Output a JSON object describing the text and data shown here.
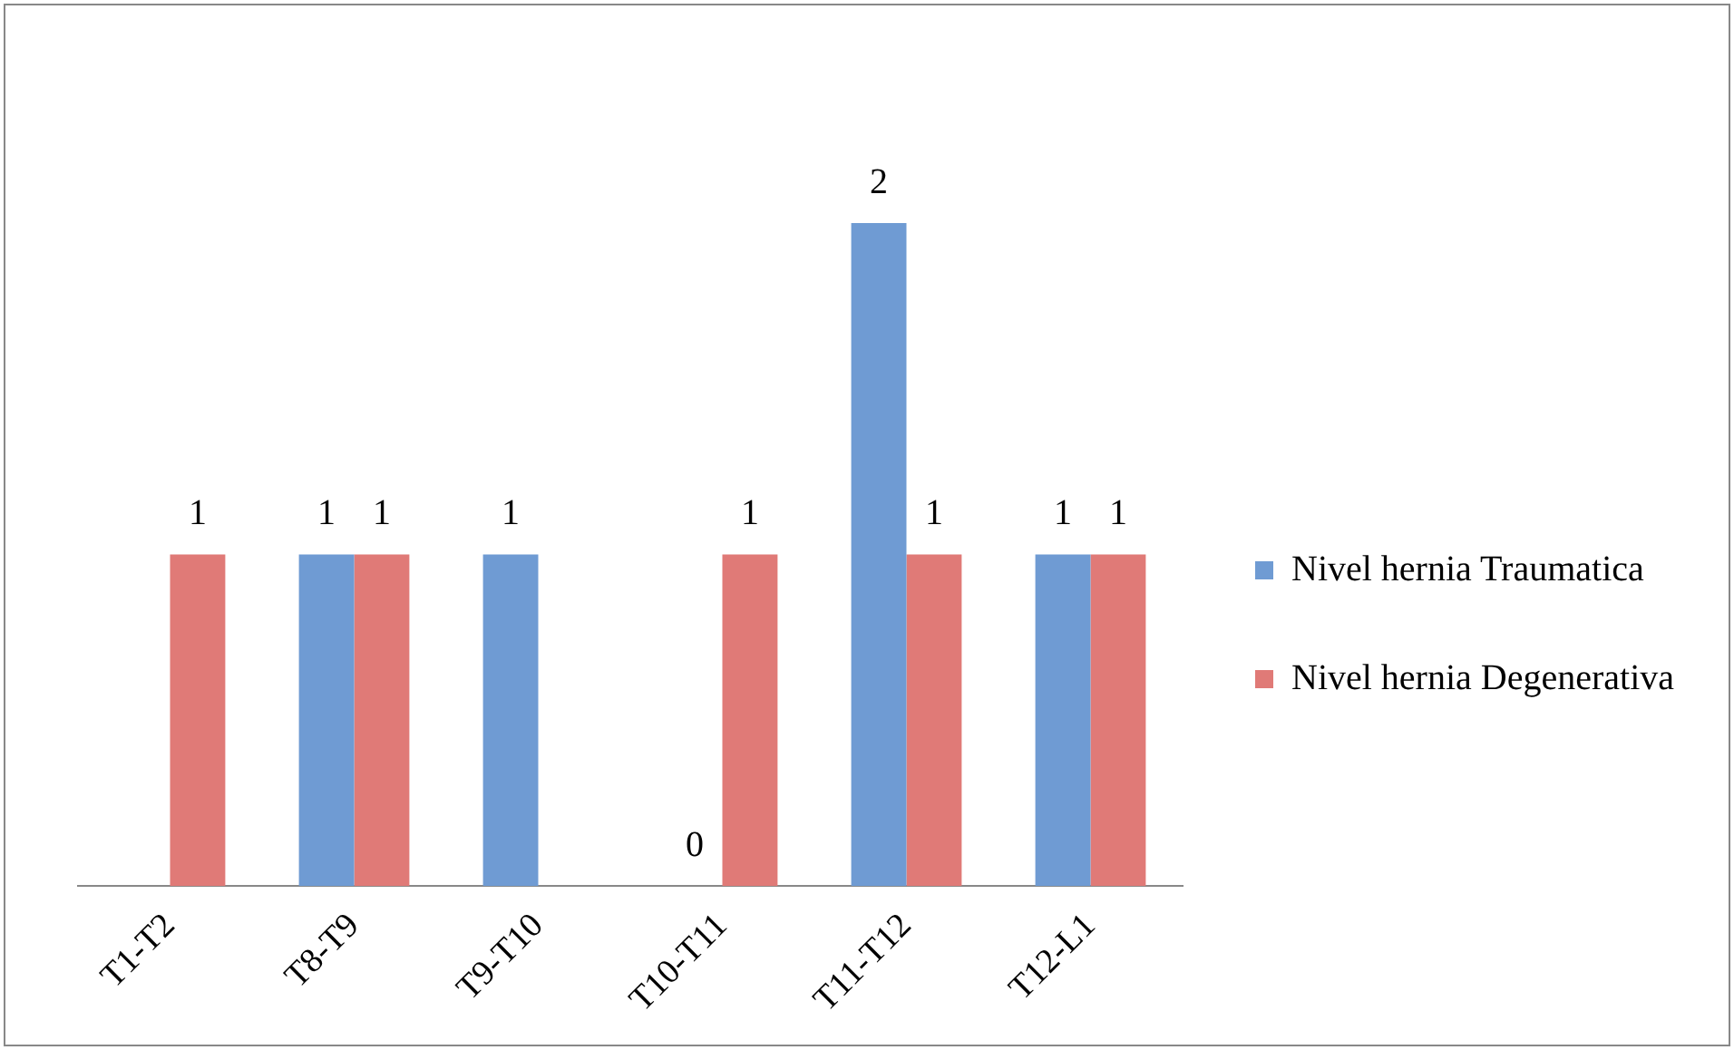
{
  "chart_data": {
    "type": "bar",
    "categories": [
      "T1-T2",
      "T8-T9",
      "T9-T10",
      "T10-T11",
      "T11-T12",
      "T12-L1"
    ],
    "series": [
      {
        "name": "Nivel hernia Traumatica",
        "color": "#6f9bd3",
        "values": [
          null,
          1,
          1,
          0,
          2,
          1
        ],
        "value_labels": [
          null,
          "1",
          "1",
          "0",
          "2",
          "1"
        ]
      },
      {
        "name": "Nivel hernia Degenerativa",
        "color": "#e07a77",
        "values": [
          1,
          1,
          null,
          1,
          1,
          1
        ],
        "value_labels": [
          "1",
          "1",
          null,
          "1",
          "1",
          "1"
        ]
      }
    ],
    "legend": "right",
    "grid": false,
    "tick_labels": "x"
  }
}
